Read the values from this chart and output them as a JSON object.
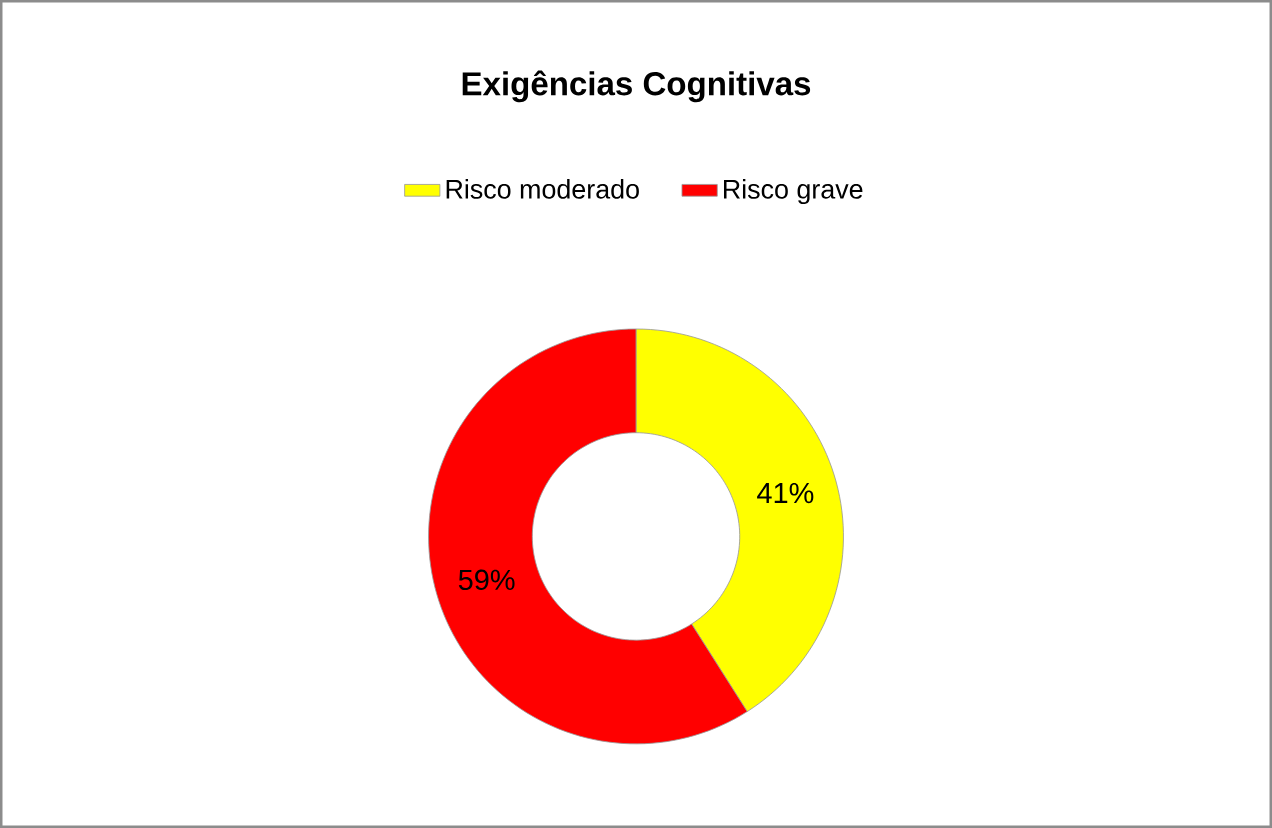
{
  "chart_data": {
    "type": "donut",
    "title": "Exigências Cognitivas",
    "categories": [
      "Risco moderado",
      "Risco grave"
    ],
    "values": [
      41,
      59
    ],
    "colors": [
      "#ffff00",
      "#ff0000"
    ],
    "value_labels": [
      "41%",
      "59%"
    ],
    "legend": "top"
  }
}
